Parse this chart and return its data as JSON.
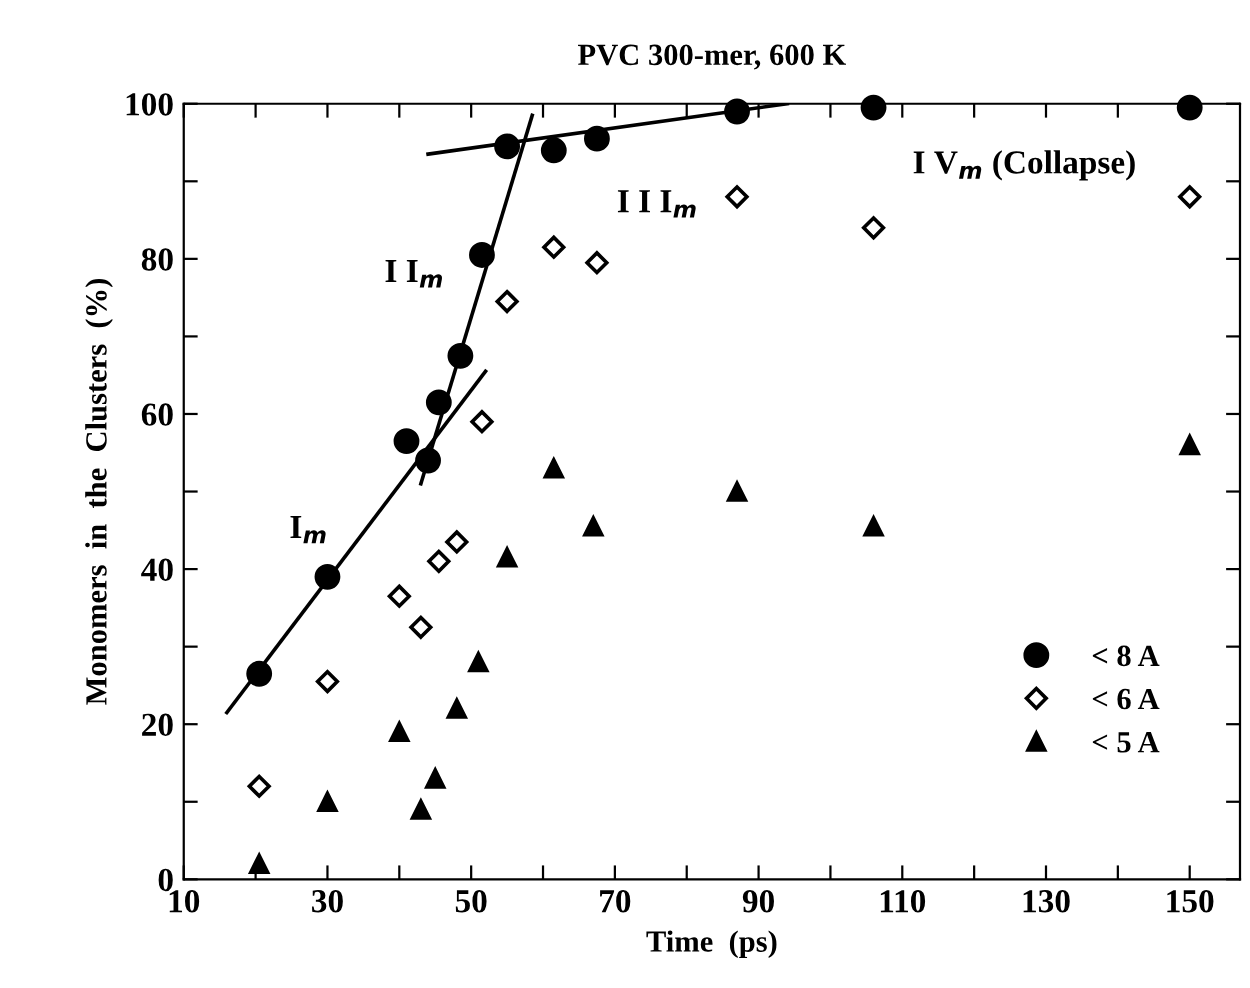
{
  "chart_data": {
    "type": "scatter",
    "title": "PVC 300-mer, 600 K",
    "xlabel": "Time  (ps)",
    "ylabel": "Monomers  in  the  Clusters  (%)",
    "xlim": [
      10,
      157
    ],
    "ylim": [
      0,
      100
    ],
    "xticks": [
      10,
      {
        "value": 20,
        "label": null
      },
      30,
      {
        "value": 40,
        "label": null
      },
      50,
      {
        "value": 60,
        "label": null
      },
      70,
      {
        "value": 80,
        "label": null
      },
      90,
      {
        "value": 100,
        "label": null
      },
      110,
      {
        "value": 120,
        "label": null
      },
      130,
      {
        "value": 140,
        "label": null
      },
      150
    ],
    "yticks": [
      0,
      {
        "value": 10,
        "label": null
      },
      20,
      {
        "value": 30,
        "label": null
      },
      40,
      {
        "value": 50,
        "label": null
      },
      60,
      {
        "value": 70,
        "label": null
      },
      80,
      {
        "value": 90,
        "label": null
      },
      100
    ],
    "grid": false,
    "legend": "bottom right",
    "series": [
      {
        "name": "< 8 A",
        "color": "#000000",
        "marker": "circle",
        "x": [
          20.5,
          30,
          41,
          44,
          45.5,
          48.5,
          51.5,
          55,
          61.5,
          67.5,
          87,
          106,
          150
        ],
        "values": [
          26.5,
          39,
          56.5,
          54,
          61.5,
          67.5,
          80.5,
          94.5,
          94,
          95.5,
          99,
          99.5,
          99.5
        ]
      },
      {
        "name": "< 6 A",
        "color": "#000000",
        "marker": "diamond",
        "x": [
          20.5,
          30,
          40,
          43,
          45.5,
          48,
          51.5,
          55,
          61.5,
          67.5,
          87,
          106,
          150
        ],
        "values": [
          12,
          25.5,
          36.5,
          32.5,
          41,
          43.5,
          59,
          74.5,
          81.5,
          79.5,
          88,
          84,
          88
        ]
      },
      {
        "name": "< 5 A",
        "color": "#000000",
        "marker": "triangle",
        "x": [
          20.5,
          30,
          40,
          43,
          45,
          48,
          51,
          55,
          61.5,
          67,
          87,
          106,
          150
        ],
        "values": [
          2,
          10,
          19,
          9,
          13,
          22,
          28,
          41.5,
          53,
          45.5,
          50,
          45.5,
          56
        ]
      },
      {
        "type": "line",
        "color": "#000000",
        "x": [
          16,
          52
        ],
        "values": [
          21.5,
          65.5
        ]
      },
      {
        "type": "line",
        "color": "#000000",
        "x": [
          43,
          58.5
        ],
        "values": [
          51,
          98.5
        ]
      },
      {
        "type": "line",
        "color": "#000000",
        "x": [
          44,
          94
        ],
        "values": [
          93.5,
          100
        ]
      }
    ],
    "annotations": [
      "I$_{m}$",
      "I I$_{m}$",
      "I I I$_{m}$",
      "I V$_{m}$ (Collapse)"
    ]
  }
}
